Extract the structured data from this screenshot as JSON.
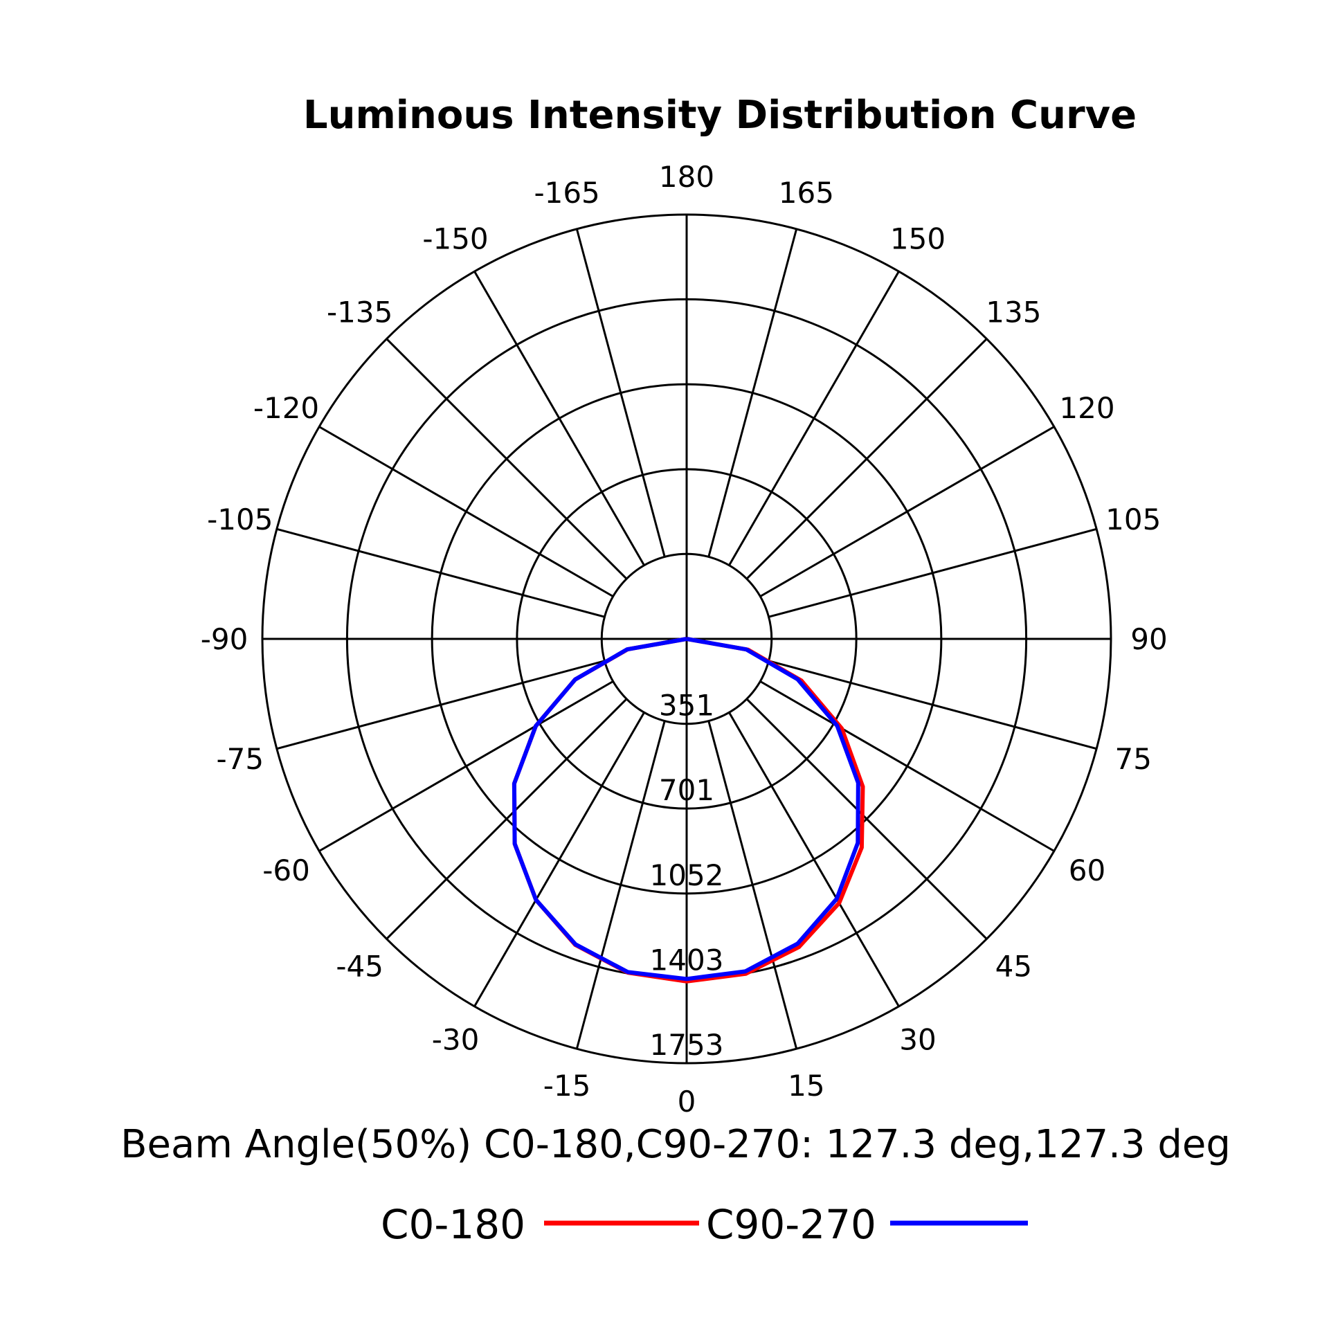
{
  "chart_data": {
    "type": "polar",
    "title": "Luminous Intensity Distribution Curve",
    "subtitle": "Beam Angle(50%) C0-180,C90-270: 127.3 deg,127.3 deg",
    "radial_ticks": [
      351,
      701,
      1052,
      1403,
      1753
    ],
    "radial_labels": [
      "351",
      "701",
      "1052",
      "1403",
      "1753"
    ],
    "rmax": 1753,
    "angle_ticks": [
      0,
      15,
      30,
      45,
      60,
      75,
      90,
      105,
      120,
      135,
      150,
      165,
      180,
      -165,
      -150,
      -135,
      -120,
      -105,
      -90,
      -75,
      -60,
      -45,
      -30,
      -15
    ],
    "angle_labels": [
      "0",
      "15",
      "30",
      "45",
      "60",
      "75",
      "90",
      "105",
      "120",
      "135",
      "150",
      "165",
      "180",
      "-165",
      "-150",
      "-135",
      "-120",
      "-105",
      "-90",
      "-75",
      "-60",
      "-45",
      "-30",
      "-15"
    ],
    "grid": true,
    "legend_position": "bottom",
    "series": [
      {
        "name": "C0-180",
        "color": "#ff0000",
        "angles": [
          -90,
          -80,
          -70,
          -60,
          -50,
          -40,
          -30,
          -20,
          -10,
          0,
          10,
          20,
          30,
          40,
          50,
          60,
          70,
          80,
          90
        ],
        "values": [
          0,
          248,
          490,
          720,
          930,
          1105,
          1245,
          1345,
          1400,
          1415,
          1405,
          1355,
          1260,
          1125,
          950,
          740,
          505,
          258,
          0
        ]
      },
      {
        "name": "C90-270",
        "color": "#0000ff",
        "angles": [
          -90,
          -80,
          -70,
          -60,
          -50,
          -40,
          -30,
          -20,
          -10,
          0,
          10,
          20,
          30,
          40,
          50,
          60,
          70,
          80,
          90
        ],
        "values": [
          0,
          250,
          490,
          720,
          930,
          1105,
          1245,
          1343,
          1398,
          1405,
          1395,
          1340,
          1240,
          1100,
          925,
          718,
          488,
          250,
          0
        ]
      }
    ]
  }
}
